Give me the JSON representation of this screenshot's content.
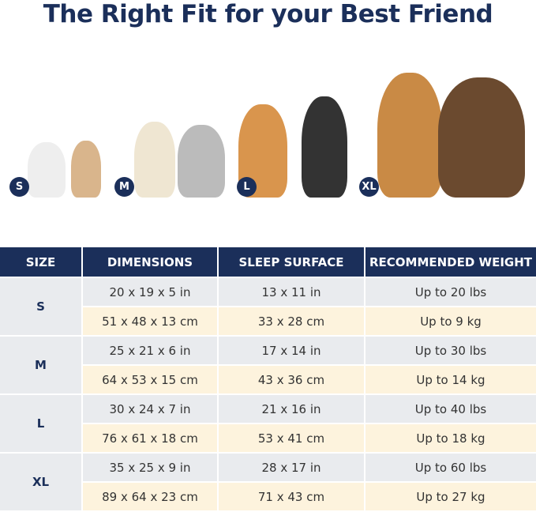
{
  "title": "The Right Fit for your Best Friend",
  "badges": [
    "S",
    "M",
    "L",
    "XL"
  ],
  "colors": {
    "navy": "#1b2f5a",
    "gray_row": "#e9ebee",
    "cream_row": "#fdf3dd"
  },
  "table": {
    "headers": [
      "SIZE",
      "DIMENSIONS",
      "SLEEP SURFACE",
      "RECOMMENDED WEIGHT"
    ],
    "rows": [
      {
        "size": "S",
        "in": [
          "20 x 19 x 5 in",
          "13 x 11 in",
          "Up to 20 lbs"
        ],
        "cm": [
          "51 x 48 x 13 cm",
          "33 x 28 cm",
          "Up to 9 kg"
        ]
      },
      {
        "size": "M",
        "in": [
          "25 x 21 x 6 in",
          "17 x 14 in",
          "Up to 30 lbs"
        ],
        "cm": [
          "64 x 53 x 15 cm",
          "43 x 36 cm",
          "Up to 14 kg"
        ]
      },
      {
        "size": "L",
        "in": [
          "30 x 24 x 7 in",
          "21 x 16 in",
          "Up to 40 lbs"
        ],
        "cm": [
          "76 x 61 x 18 cm",
          "53 x 41 cm",
          "Up to 18 kg"
        ]
      },
      {
        "size": "XL",
        "in": [
          "35 x 25 x 9 in",
          "28 x 17 in",
          "Up to 60 lbs"
        ],
        "cm": [
          "89 x 64 x 23 cm",
          "71 x 43 cm",
          "Up to 27 kg"
        ]
      }
    ]
  }
}
